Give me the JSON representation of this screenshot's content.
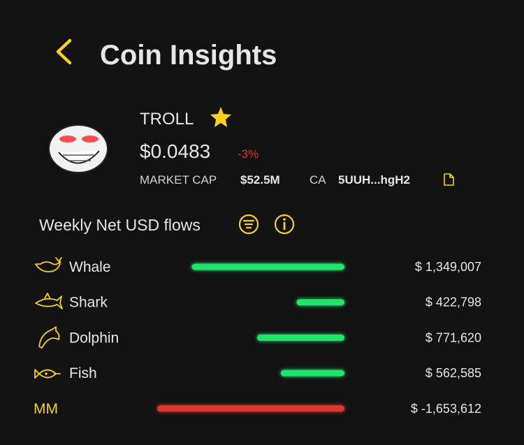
{
  "header": {
    "title": "Coin Insights"
  },
  "token": {
    "name": "TROLL",
    "price": "$0.0483",
    "change": "-3%",
    "market_cap_label": "MARKET CAP",
    "market_cap": "$52.5M",
    "ca_label": "CA",
    "ca": "5UUH...hgH2"
  },
  "flows": {
    "title": "Weekly Net USD flows",
    "categories": [
      "Whale",
      "Shark",
      "Dolphin",
      "Fish",
      "MM"
    ],
    "values": [
      1349007,
      422798,
      771620,
      562585,
      -1653612
    ],
    "value_labels": [
      "$ 1,349,007",
      "$ 422,798",
      "$ 771,620",
      "$ 562,585",
      "$ -1,653,612"
    ],
    "positive_color": "#22e36c",
    "negative_color": "#d9382a"
  }
}
